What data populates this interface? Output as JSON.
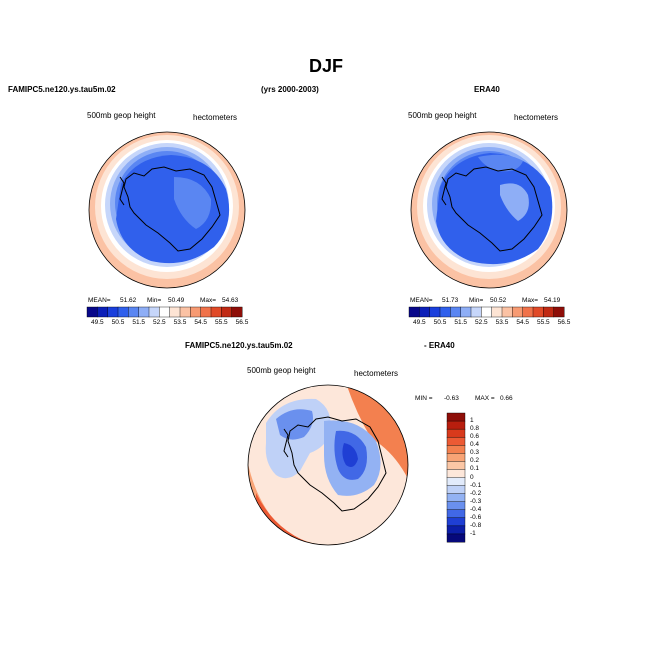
{
  "page": {
    "title": "DJF",
    "model_left": "FAMIPC5.ne120.ys.tau5m.02",
    "years": "(yrs 2000-2003)",
    "obs_label": "ERA40",
    "diff_model": "FAMIPC5.ne120.ys.tau5m.02",
    "diff_obs": "- ERA40"
  },
  "panels": {
    "left": {
      "field_label": "500mb geop height",
      "units": "hectometers",
      "mean_label": "MEAN=",
      "mean": "51.62",
      "min_label": "Min=",
      "min": "50.49",
      "max_label": "Max=",
      "max": "54.63"
    },
    "right": {
      "field_label": "500mb geop height",
      "units": "hectometers",
      "mean_label": "MEAN=",
      "mean": "51.73",
      "min_label": "Min=",
      "min": "50.52",
      "max_label": "Max=",
      "max": "54.19"
    },
    "diff": {
      "field_label": "500mb geop height",
      "units": "hectometers",
      "min_label": "MIN =",
      "min": "-0.63",
      "max_label": "MAX =",
      "max": "0.66"
    }
  },
  "colorbar_abs": {
    "ticks": [
      "49.5",
      "50.5",
      "51.5",
      "52.5",
      "53.5",
      "54.5",
      "55.5",
      "56.5"
    ],
    "colors": [
      "#08088a",
      "#0b1fb8",
      "#1a3fdc",
      "#3060ec",
      "#5a86f2",
      "#8eaef6",
      "#c6d6fa",
      "#ffffff",
      "#fde4d4",
      "#fbc2a4",
      "#f79a72",
      "#f0724a",
      "#e04a28",
      "#c02a14",
      "#8e0e08"
    ]
  },
  "colorbar_diff": {
    "ticks": [
      "1",
      "0.8",
      "0.6",
      "0.4",
      "0.3",
      "0.2",
      "0.1",
      "0",
      "-0.1",
      "-0.2",
      "-0.3",
      "-0.4",
      "-0.6",
      "-0.8",
      "-1"
    ],
    "colors": [
      "#8e0e08",
      "#b81e0e",
      "#d83a1c",
      "#ec5a34",
      "#f3804f",
      "#f8a476",
      "#fbc7a6",
      "#fde7da",
      "#e2ebfb",
      "#bfd1f7",
      "#93b2f3",
      "#6a90ee",
      "#4168e6",
      "#1f3fd4",
      "#0c1ea8",
      "#06087a"
    ]
  }
}
